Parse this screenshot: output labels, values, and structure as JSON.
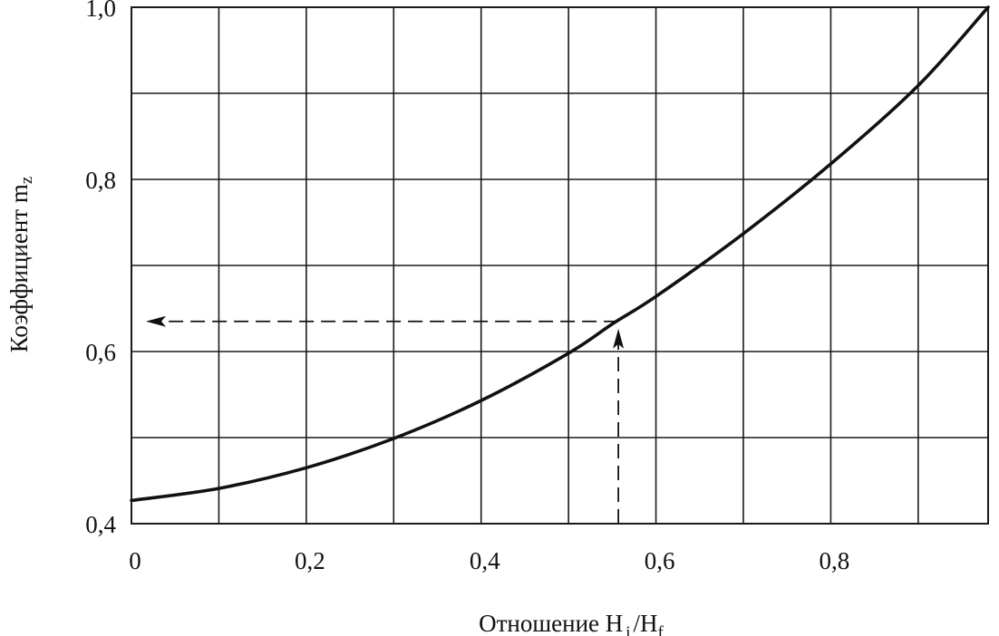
{
  "chart_data": {
    "type": "line",
    "xlabel": {
      "text": "Отношение H",
      "sub1": "i",
      "sep": "/H",
      "sub2": "f"
    },
    "ylabel": {
      "text": "Коэффициент m",
      "sub": "z"
    },
    "xlim": [
      0,
      0.98
    ],
    "ylim": [
      0.4,
      1.0
    ],
    "x_ticks": [
      {
        "value": 0,
        "label": "0"
      },
      {
        "value": 0.2,
        "label": "0,2"
      },
      {
        "value": 0.4,
        "label": "0,4"
      },
      {
        "value": 0.6,
        "label": "0,6"
      },
      {
        "value": 0.8,
        "label": "0,8"
      }
    ],
    "y_ticks": [
      {
        "value": 0.4,
        "label": "0,4"
      },
      {
        "value": 0.6,
        "label": "0,6"
      },
      {
        "value": 0.8,
        "label": "0,8"
      },
      {
        "value": 1.0,
        "label": "1,0"
      }
    ],
    "grid": true,
    "x_grid_step": 0.1,
    "y_grid_step": 0.1,
    "series": [
      {
        "x": [
          0,
          0.1,
          0.2,
          0.3,
          0.4,
          0.5,
          0.55,
          0.6,
          0.7,
          0.8,
          0.9,
          0.98
        ],
        "y": [
          0.427,
          0.441,
          0.465,
          0.499,
          0.543,
          0.598,
          0.632,
          0.664,
          0.737,
          0.818,
          0.909,
          1.0
        ]
      }
    ],
    "annotation": {
      "x": 0.557,
      "y": 0.635,
      "style": "dashed-arrows"
    }
  }
}
